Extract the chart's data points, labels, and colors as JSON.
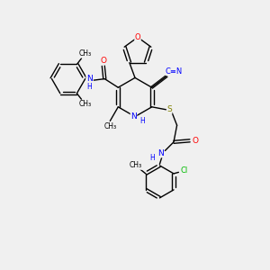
{
  "background_color": "#f0f0f0",
  "bond_color": "#000000",
  "atom_colors": {
    "O": "#ff0000",
    "N": "#0000ff",
    "S": "#808000",
    "Cl": "#00bb00",
    "C": "#000000",
    "H": "#000000"
  },
  "figsize": [
    3.0,
    3.0
  ],
  "dpi": 100,
  "xlim": [
    0,
    10
  ],
  "ylim": [
    0,
    10
  ]
}
